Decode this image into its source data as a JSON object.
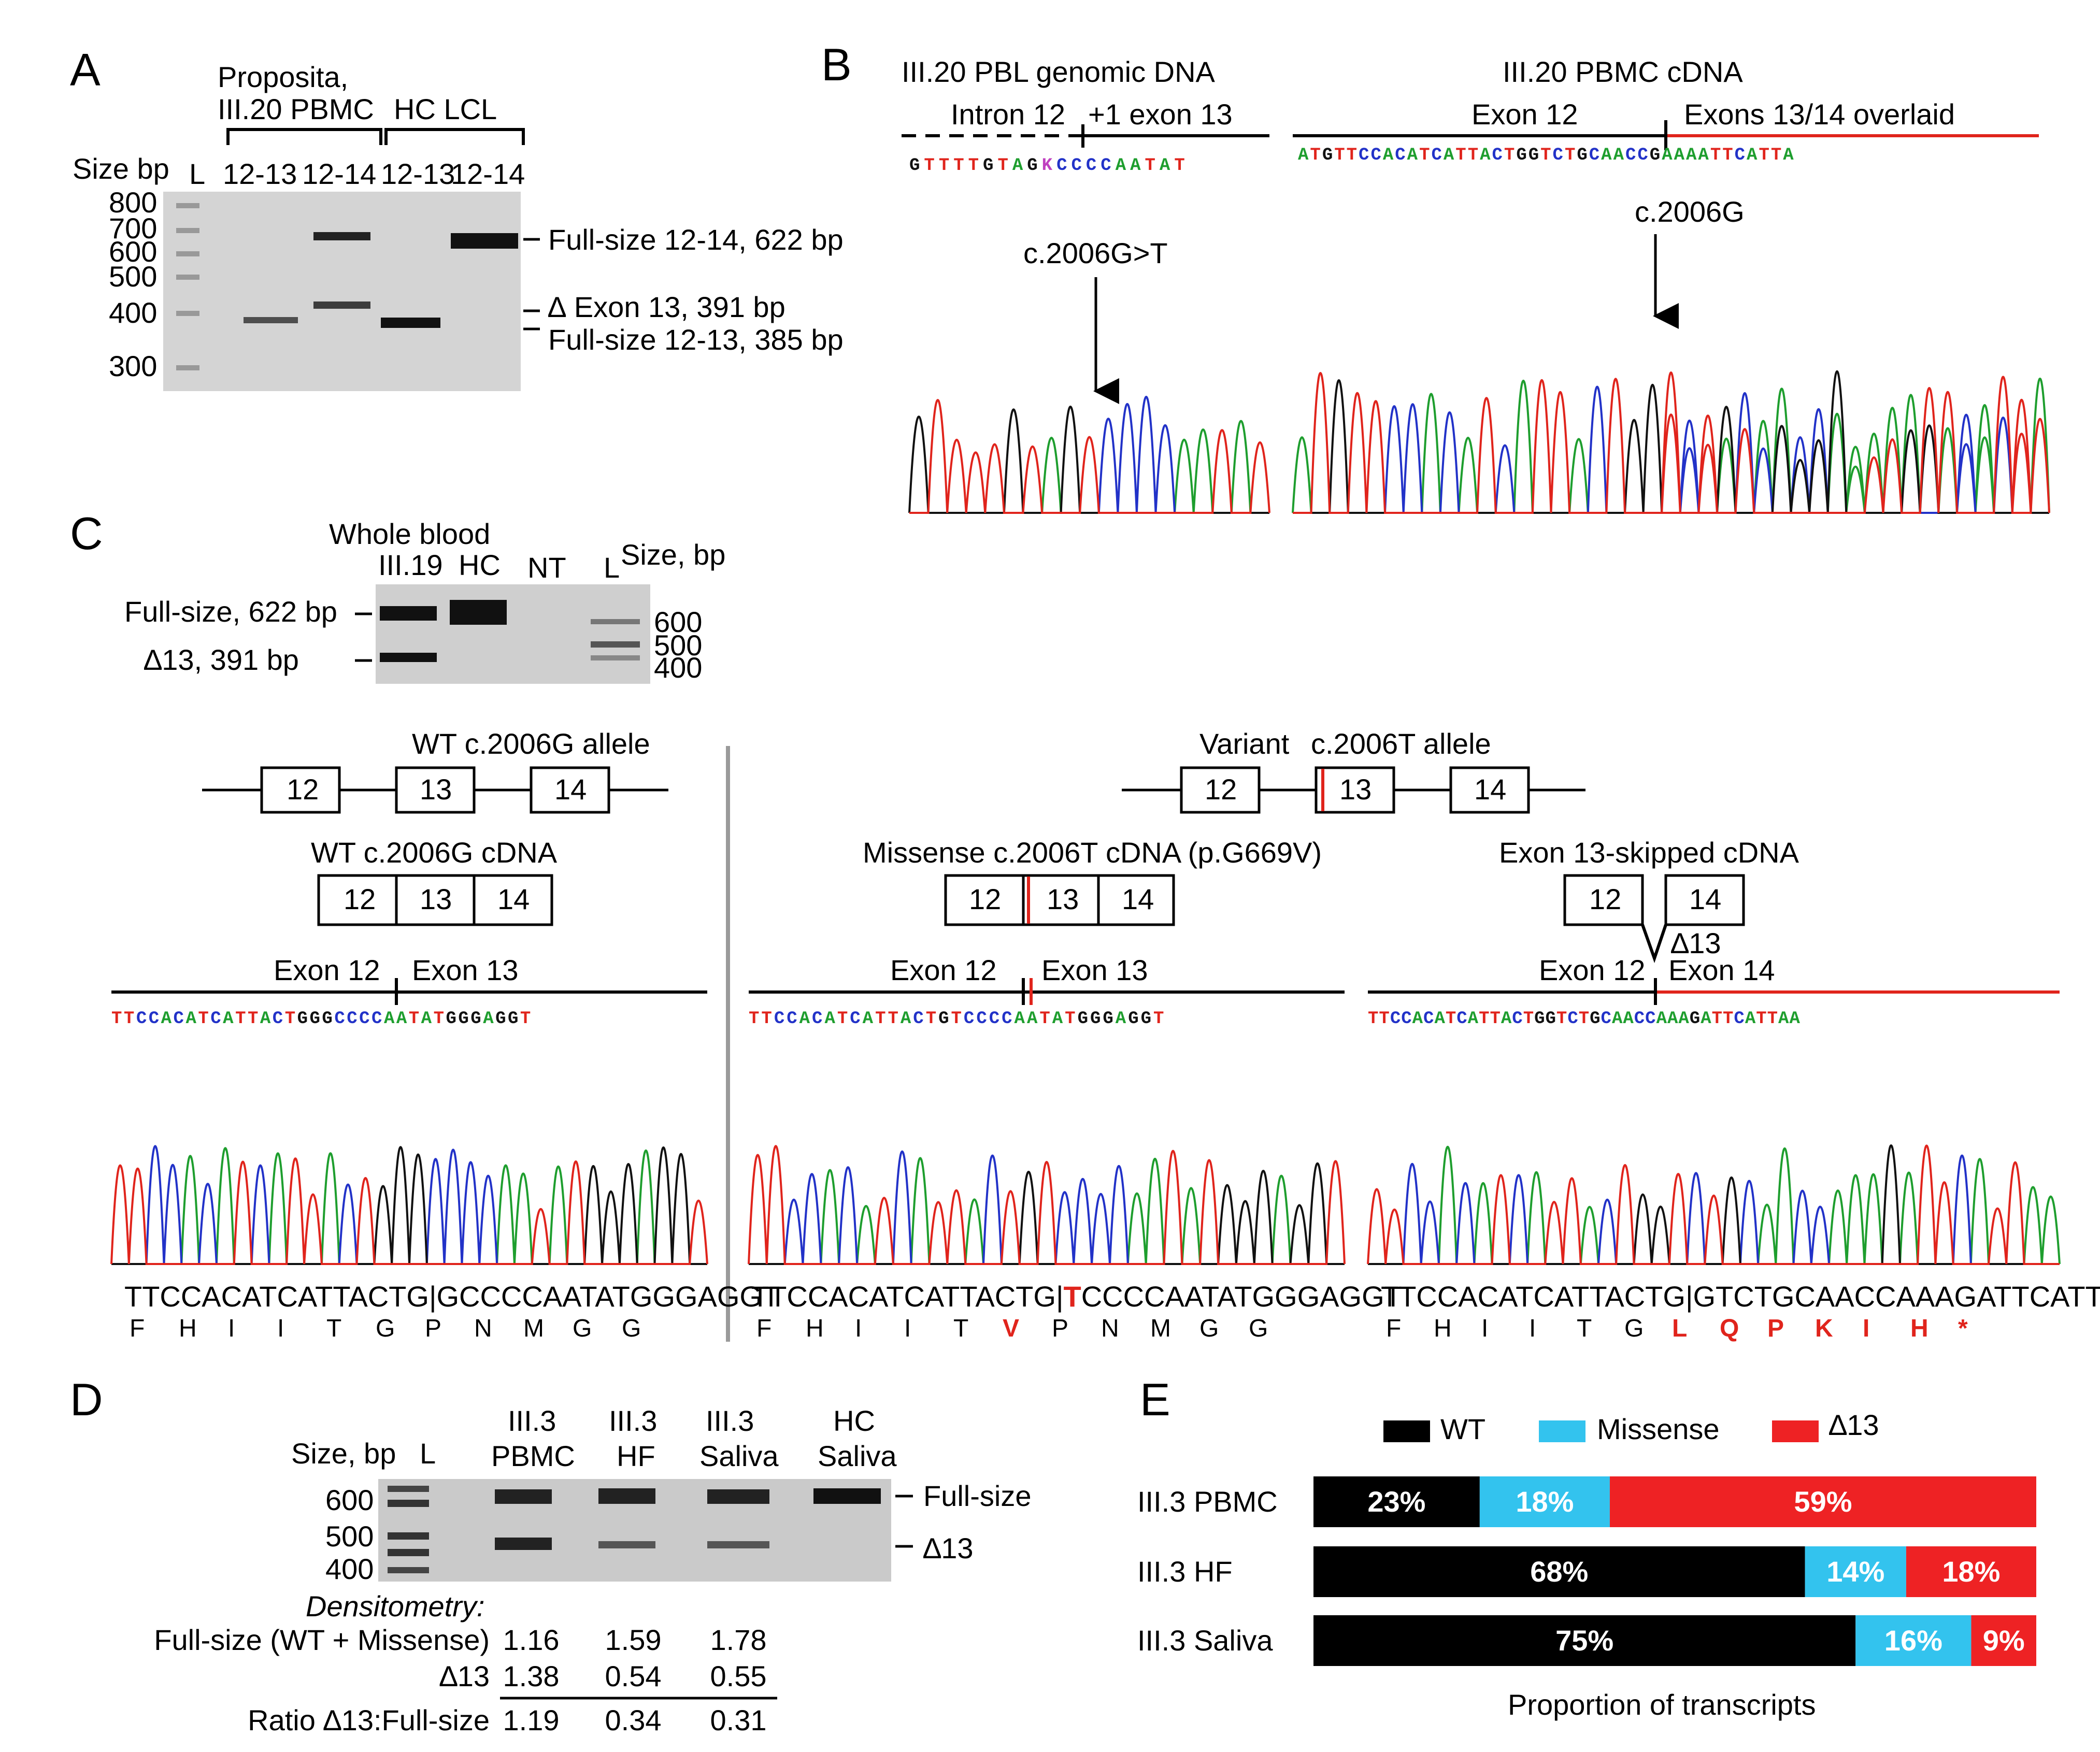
{
  "colors": {
    "seq_A": "#1e9e2e",
    "seq_C": "#2232c8",
    "seq_G": "#111111",
    "seq_T": "#e0241c",
    "ambig": "#c040c0",
    "highlight_red": "#e0241c",
    "wt_black": "#000000",
    "missense_blue": "#33c3ee",
    "del_red": "#ee2224",
    "gel_bg": "#c9c9c9"
  },
  "panelA": {
    "letter": "A",
    "group1": "Proposita,",
    "group1b": "III.20 PBMC",
    "group2": "HC LCL",
    "size_header": "Size bp",
    "ladder_label": "L",
    "lanes": [
      "12-13",
      "12-14",
      "12-13",
      "12-14"
    ],
    "sizes": [
      "800",
      "700",
      "600",
      "500",
      "400",
      "300"
    ],
    "annotations": [
      "Full-size 12-14, 622 bp",
      "∆ Exon 13, 391 bp",
      "Full-size 12-13, 385 bp"
    ]
  },
  "panelB": {
    "letter": "B",
    "title1": "III.20 PBL genomic DNA",
    "title2": "III.20 PBMC cDNA",
    "region1a": "Intron 12",
    "region1b": "+1 exon 13",
    "region2a": "Exon 12",
    "region2b": "Exons 13/14 overlaid",
    "seq1": "GTTTTGTAGKCCCCAATAT",
    "seq2": "ATGTTCCACATCATTACTGGTCTGCAACCGAAAATTCATTA",
    "mut1": "c.2006G>T",
    "mut2": "c.2006G"
  },
  "panelC": {
    "letter": "C",
    "title": "Whole blood",
    "lanes": [
      "III.19",
      "HC",
      "NT",
      "L"
    ],
    "size_header": "Size, bp",
    "sizes": [
      "600",
      "500",
      "400"
    ],
    "band_labels": [
      "Full-size, 622 bp",
      "∆13, 391 bp"
    ],
    "wt_allele": "WT c.2006G allele",
    "var_allele_a": "Variant",
    "var_allele_b": "c.2006T allele",
    "exons": [
      "12",
      "13",
      "14"
    ],
    "wt_cdna": "WT c.2006G cDNA",
    "mis_cdna": "Missense c.2006T cDNA (p.G669V)",
    "skip_cdna": "Exon 13-skipped cDNA",
    "delta": "∆13",
    "exon12": "Exon 12",
    "exon13": "Exon 13",
    "exon14": "Exon 14",
    "chrom_seq_wt": "TTCCACATCATTACTGGGCCCCAATATGGGAGGT",
    "chrom_seq_mis": "TTCCACATCATTACTGTCCCCAATATGGGAGGT",
    "chrom_seq_skip": "TTCCACATCATTACTGGTCTGCAACCAAAGATTCATTAA",
    "nt_wt_a": "TTCCACATCATTACTG|GCCCCAATATGGGAGGT",
    "nt_mis_a": "TTCCACATCATTACTG|",
    "nt_mis_b": "T",
    "nt_mis_c": "CCCCAATATGGGAGGT",
    "nt_skip": "TTCCACATCATTACTG|GTCTGCAACCAAAGATTCATTAA",
    "aa_wt": [
      "F",
      "H",
      "I",
      "I",
      "T",
      "G",
      "P",
      "N",
      "M",
      "G",
      "G"
    ],
    "aa_mis": [
      "F",
      "H",
      "I",
      "I",
      "T",
      "V",
      "P",
      "N",
      "M",
      "G",
      "G"
    ],
    "aa_skip": [
      "F",
      "H",
      "I",
      "I",
      "T",
      "G",
      "L",
      "Q",
      "P",
      "K",
      "I",
      "H",
      "*"
    ]
  },
  "panelD": {
    "letter": "D",
    "size_header": "Size, bp",
    "ladder": "L",
    "lanes_top": [
      "III.3",
      "III.3",
      "III.3",
      "HC"
    ],
    "lanes_bottom": [
      "PBMC",
      "HF",
      "Saliva",
      "Saliva"
    ],
    "sizes": [
      "600",
      "500",
      "400"
    ],
    "band_labels": [
      "Full-size",
      "∆13"
    ],
    "densitometry_title": "Densitometry:",
    "rows": [
      {
        "label": "Full-size (WT + Missense)",
        "values": [
          "1.16",
          "1.59",
          "1.78"
        ]
      },
      {
        "label": "∆13",
        "values": [
          "1.38",
          "0.54",
          "0.55"
        ]
      },
      {
        "label": "Ratio ∆13:Full-size",
        "values": [
          "1.19",
          "0.34",
          "0.31"
        ]
      }
    ]
  },
  "panelE": {
    "letter": "E",
    "xlabel": "Proportion of transcripts",
    "legend": [
      "WT",
      "Missense",
      "∆13"
    ]
  },
  "chart_data": {
    "type": "bar",
    "orientation": "horizontal-stacked",
    "title": "",
    "xlabel": "Proportion of transcripts",
    "categories": [
      "III.3 PBMC",
      "III.3 HF",
      "III.3 Saliva"
    ],
    "series": [
      {
        "name": "WT",
        "values": [
          23,
          68,
          75
        ],
        "labels": [
          "23%",
          "68%",
          "75%"
        ]
      },
      {
        "name": "Missense",
        "values": [
          18,
          14,
          16
        ],
        "labels": [
          "18%",
          "14%",
          "16%"
        ]
      },
      {
        "name": "∆13",
        "values": [
          59,
          18,
          9
        ],
        "labels": [
          "59%",
          "18%",
          "9%"
        ]
      }
    ],
    "xlim": [
      0,
      100
    ],
    "legend": "top"
  }
}
